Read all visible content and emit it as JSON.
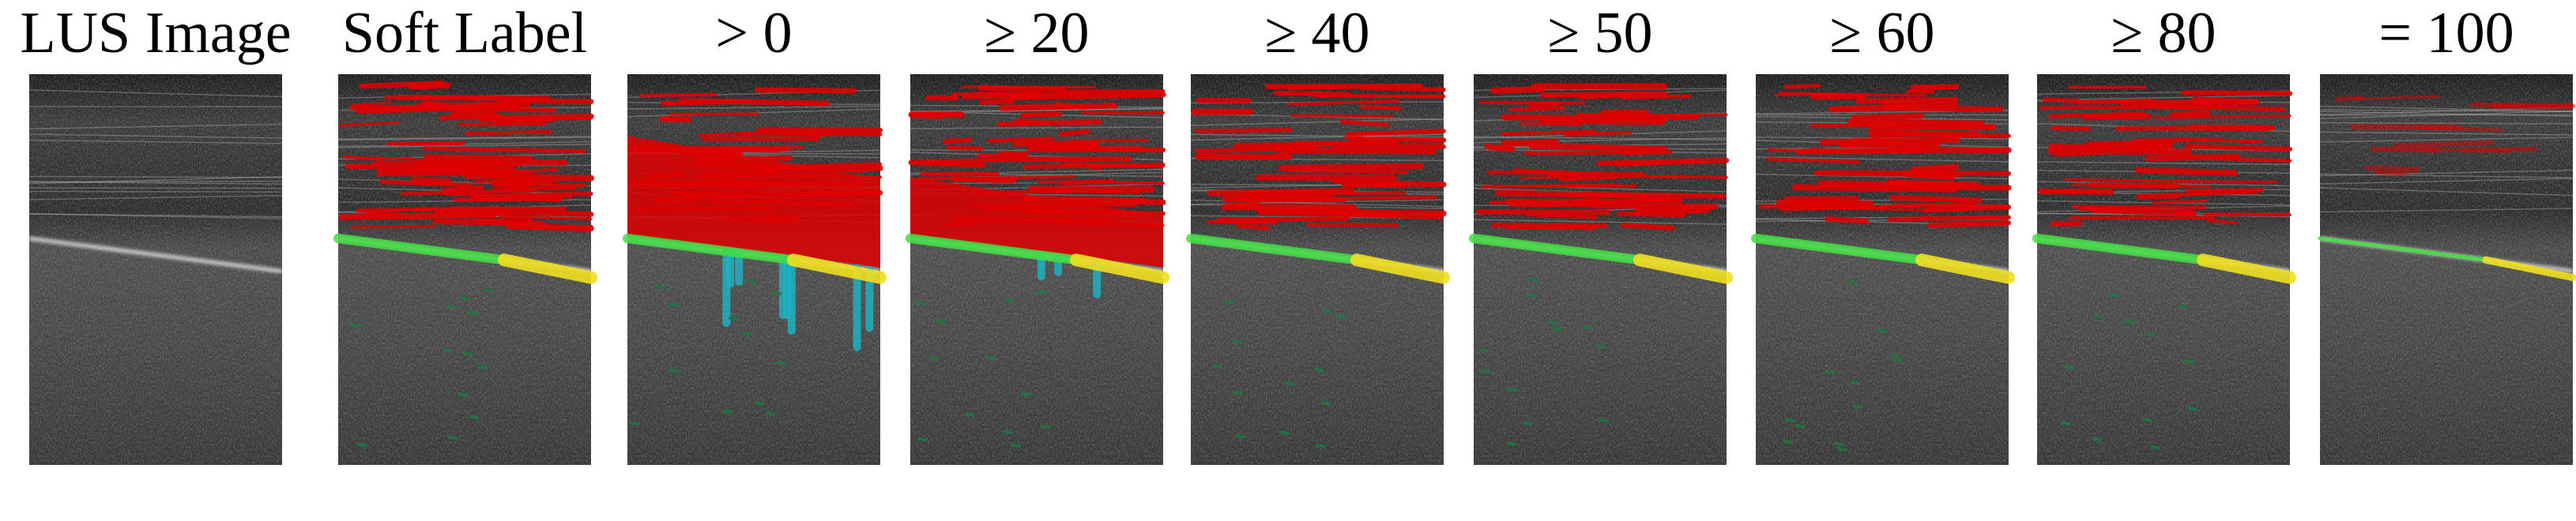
{
  "panels": [
    {
      "title": "LUS Image"
    },
    {
      "title": "Soft Label"
    },
    {
      "title": "> 0"
    },
    {
      "title": "≥ 20"
    },
    {
      "title": "≥ 40"
    },
    {
      "title": "≥ 50"
    },
    {
      "title": "≥ 60"
    },
    {
      "title": "≥ 80"
    },
    {
      "title": "= 100"
    }
  ]
}
